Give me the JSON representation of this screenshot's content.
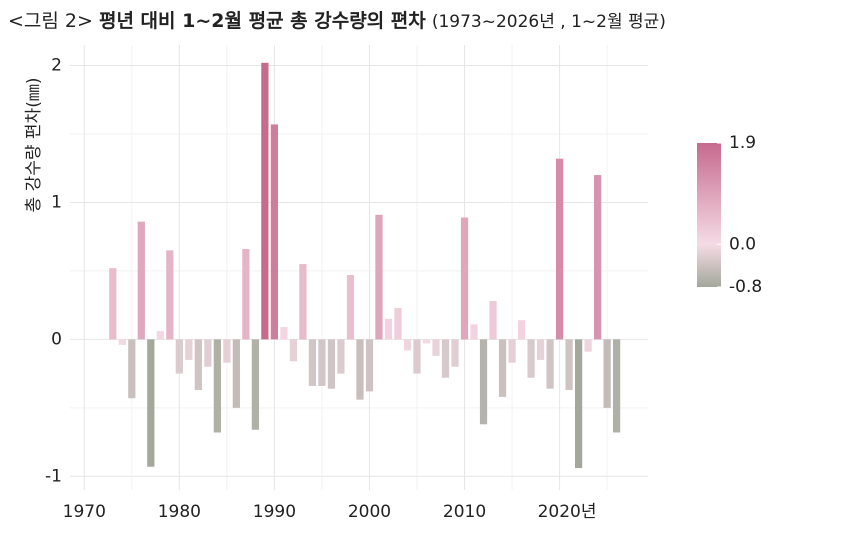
{
  "chart_data": {
    "type": "bar",
    "figure_label": "<그림 2>",
    "title": "평년 대비 1~2월 평균 총 강수량의 편차",
    "subtitle": "(1973~2026년 , 1~2월 평균)",
    "ylabel": "총 강수량 편차(㎜)",
    "x": [
      1973,
      1974,
      1975,
      1976,
      1977,
      1978,
      1979,
      1980,
      1981,
      1982,
      1983,
      1984,
      1985,
      1986,
      1987,
      1988,
      1989,
      1990,
      1991,
      1992,
      1993,
      1994,
      1995,
      1996,
      1997,
      1998,
      1999,
      2000,
      2001,
      2002,
      2003,
      2004,
      2005,
      2006,
      2007,
      2008,
      2009,
      2010,
      2011,
      2012,
      2013,
      2014,
      2015,
      2016,
      2017,
      2018,
      2019,
      2020,
      2021,
      2022,
      2023,
      2024,
      2025,
      2026
    ],
    "values": [
      0.52,
      -0.04,
      -0.43,
      0.86,
      -0.93,
      0.06,
      0.65,
      -0.25,
      -0.15,
      -0.37,
      -0.2,
      -0.68,
      -0.17,
      -0.5,
      0.66,
      -0.66,
      2.02,
      1.57,
      0.09,
      -0.16,
      0.55,
      -0.34,
      -0.34,
      -0.36,
      -0.25,
      0.47,
      -0.44,
      -0.38,
      0.91,
      0.15,
      0.23,
      -0.08,
      -0.25,
      -0.03,
      -0.12,
      -0.28,
      -0.2,
      0.89,
      0.11,
      -0.62,
      0.28,
      -0.42,
      -0.17,
      0.14,
      -0.28,
      -0.15,
      -0.36,
      1.32,
      -0.37,
      -0.94,
      -0.09,
      1.2,
      -0.5,
      -0.68
    ],
    "xlim": [
      1968.5,
      2029.3
    ],
    "xticks": [
      1970,
      1980,
      1990,
      2000,
      2010,
      {
        "value": 2020,
        "label": "2020년"
      }
    ],
    "minor_xticks": [
      1975,
      1985,
      1995,
      2005,
      2015,
      2025
    ],
    "ylim": [
      -1.1,
      2.15
    ],
    "yticks": [
      -1,
      0,
      1,
      2
    ],
    "minor_yticks": [
      -0.5,
      0.5,
      1.5
    ],
    "grid": true,
    "colorbar": {
      "ticks": [
        {
          "value": 1.9,
          "label": "1.9"
        },
        {
          "value": 0.0,
          "label": "0.0"
        },
        {
          "value": -0.8,
          "label": "-0.8"
        }
      ],
      "colors": [
        "#c66a8e",
        "#f5dbe5",
        "#a3a89b"
      ]
    }
  }
}
